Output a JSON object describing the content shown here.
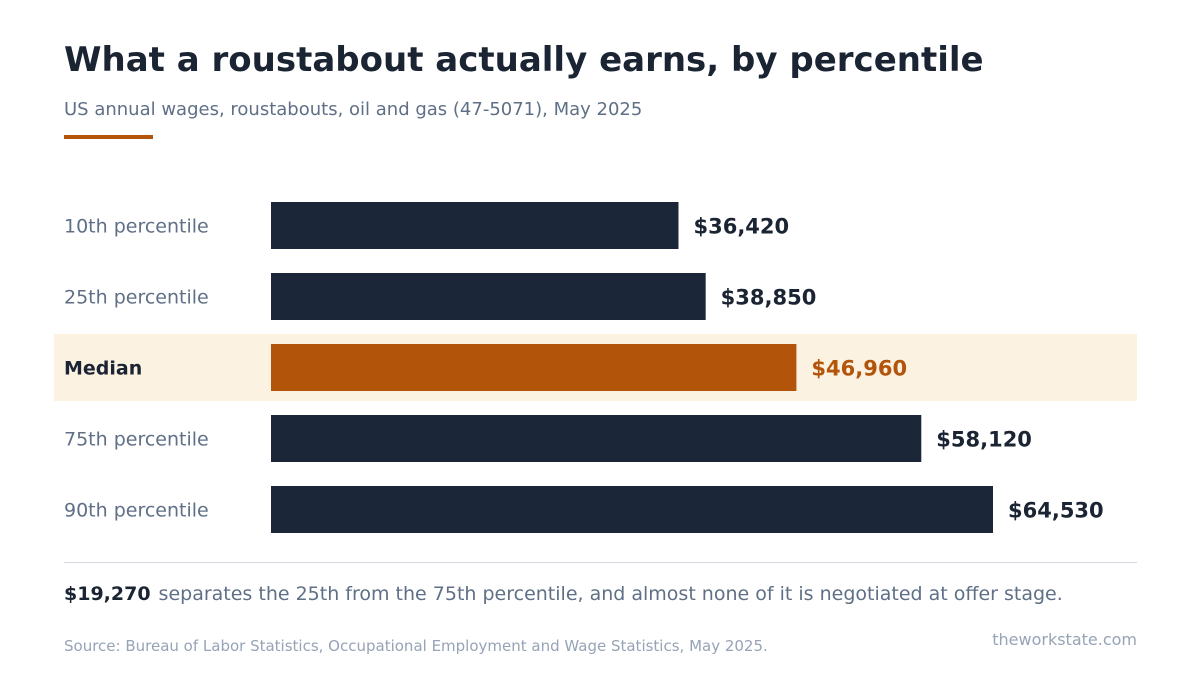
{
  "title": "What a roustabout actually earns, by percentile",
  "subtitle": "US annual wages, roustabouts, oil and gas (47-5071), May 2025",
  "footer": {
    "highlight": "$19,270",
    "takeaway": "separates the 25th from the 75th percentile, and almost none of it is negotiated at offer stage.",
    "source": "Source: Bureau of Labor Statistics, Occupational Employment and Wage Statistics, May 2025.",
    "site": "theworkstate.com"
  },
  "colors": {
    "bar": "#1c2639",
    "highlight_bar": "#b3540b",
    "highlight_band": "#fcf2e2",
    "label": "#5f6f86",
    "value": "#1b2433"
  },
  "chart_data": {
    "type": "bar",
    "orientation": "horizontal",
    "categories": [
      "10th percentile",
      "25th percentile",
      "Median",
      "75th percentile",
      "90th percentile"
    ],
    "values": [
      36420,
      38850,
      46960,
      58120,
      64530
    ],
    "value_labels": [
      "$36,420",
      "$38,850",
      "$46,960",
      "$58,120",
      "$64,530"
    ],
    "highlighted_category": "Median",
    "xlim": [
      0,
      64530
    ],
    "grid": false,
    "legend": "none"
  }
}
